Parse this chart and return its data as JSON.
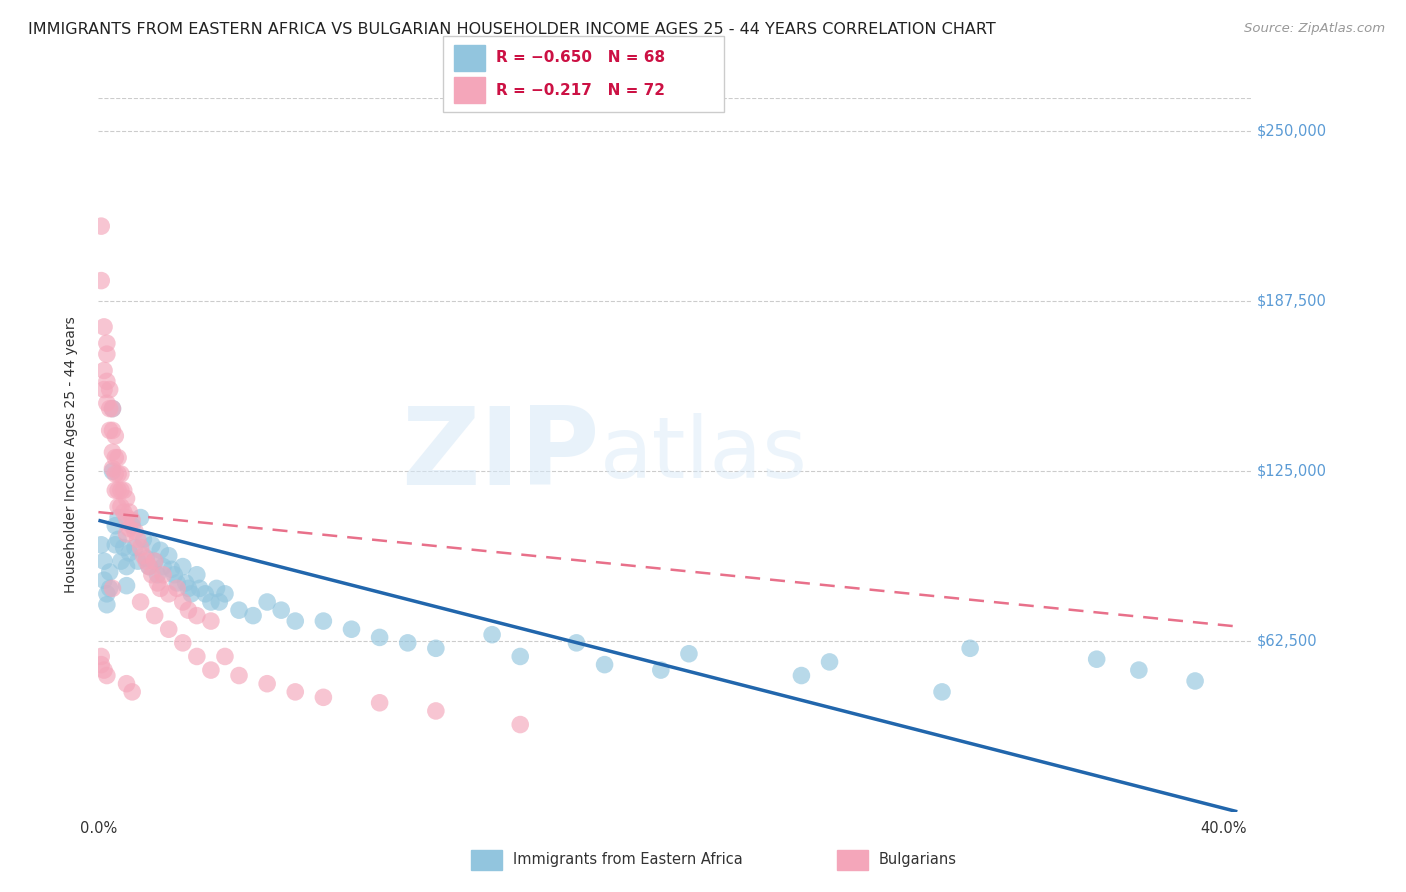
{
  "title": "IMMIGRANTS FROM EASTERN AFRICA VS BULGARIAN HOUSEHOLDER INCOME AGES 25 - 44 YEARS CORRELATION CHART",
  "source": "Source: ZipAtlas.com",
  "ylabel": "Householder Income Ages 25 - 44 years",
  "ytick_labels": [
    "$250,000",
    "$187,500",
    "$125,000",
    "$62,500"
  ],
  "ytick_values": [
    250000,
    187500,
    125000,
    62500
  ],
  "ymax": 262000,
  "ymin": 0,
  "xmin": 0.0,
  "xmax": 0.41,
  "legend_label_blue": "Immigrants from Eastern Africa",
  "legend_label_pink": "Bulgarians",
  "watermark_zip": "ZIP",
  "watermark_atlas": "atlas",
  "blue_color": "#92c5de",
  "pink_color": "#f4a6ba",
  "blue_line_color": "#2166ac",
  "pink_line_color": "#e8708a",
  "blue_scatter": [
    [
      0.001,
      98000
    ],
    [
      0.002,
      92000
    ],
    [
      0.002,
      85000
    ],
    [
      0.003,
      80000
    ],
    [
      0.003,
      76000
    ],
    [
      0.004,
      88000
    ],
    [
      0.004,
      82000
    ],
    [
      0.005,
      148000
    ],
    [
      0.005,
      125000
    ],
    [
      0.006,
      105000
    ],
    [
      0.006,
      98000
    ],
    [
      0.007,
      108000
    ],
    [
      0.007,
      100000
    ],
    [
      0.008,
      92000
    ],
    [
      0.009,
      97000
    ],
    [
      0.01,
      90000
    ],
    [
      0.01,
      83000
    ],
    [
      0.011,
      95000
    ],
    [
      0.012,
      105000
    ],
    [
      0.013,
      97000
    ],
    [
      0.014,
      92000
    ],
    [
      0.015,
      108000
    ],
    [
      0.016,
      100000
    ],
    [
      0.017,
      93000
    ],
    [
      0.018,
      90000
    ],
    [
      0.019,
      98000
    ],
    [
      0.02,
      92000
    ],
    [
      0.021,
      87000
    ],
    [
      0.022,
      96000
    ],
    [
      0.023,
      90000
    ],
    [
      0.025,
      94000
    ],
    [
      0.026,
      89000
    ],
    [
      0.027,
      87000
    ],
    [
      0.028,
      84000
    ],
    [
      0.03,
      90000
    ],
    [
      0.031,
      84000
    ],
    [
      0.032,
      82000
    ],
    [
      0.033,
      80000
    ],
    [
      0.035,
      87000
    ],
    [
      0.036,
      82000
    ],
    [
      0.038,
      80000
    ],
    [
      0.04,
      77000
    ],
    [
      0.042,
      82000
    ],
    [
      0.043,
      77000
    ],
    [
      0.045,
      80000
    ],
    [
      0.05,
      74000
    ],
    [
      0.055,
      72000
    ],
    [
      0.06,
      77000
    ],
    [
      0.065,
      74000
    ],
    [
      0.07,
      70000
    ],
    [
      0.08,
      70000
    ],
    [
      0.09,
      67000
    ],
    [
      0.1,
      64000
    ],
    [
      0.11,
      62000
    ],
    [
      0.12,
      60000
    ],
    [
      0.15,
      57000
    ],
    [
      0.18,
      54000
    ],
    [
      0.2,
      52000
    ],
    [
      0.25,
      50000
    ],
    [
      0.3,
      44000
    ],
    [
      0.355,
      56000
    ],
    [
      0.37,
      52000
    ],
    [
      0.39,
      48000
    ],
    [
      0.31,
      60000
    ],
    [
      0.26,
      55000
    ],
    [
      0.21,
      58000
    ],
    [
      0.17,
      62000
    ],
    [
      0.14,
      65000
    ]
  ],
  "pink_scatter": [
    [
      0.001,
      215000
    ],
    [
      0.001,
      195000
    ],
    [
      0.002,
      178000
    ],
    [
      0.002,
      162000
    ],
    [
      0.002,
      155000
    ],
    [
      0.003,
      172000
    ],
    [
      0.003,
      168000
    ],
    [
      0.003,
      158000
    ],
    [
      0.003,
      150000
    ],
    [
      0.004,
      155000
    ],
    [
      0.004,
      148000
    ],
    [
      0.004,
      140000
    ],
    [
      0.005,
      148000
    ],
    [
      0.005,
      140000
    ],
    [
      0.005,
      132000
    ],
    [
      0.005,
      126000
    ],
    [
      0.006,
      138000
    ],
    [
      0.006,
      130000
    ],
    [
      0.006,
      124000
    ],
    [
      0.006,
      118000
    ],
    [
      0.007,
      130000
    ],
    [
      0.007,
      124000
    ],
    [
      0.007,
      118000
    ],
    [
      0.007,
      112000
    ],
    [
      0.008,
      124000
    ],
    [
      0.008,
      118000
    ],
    [
      0.008,
      112000
    ],
    [
      0.009,
      118000
    ],
    [
      0.009,
      110000
    ],
    [
      0.01,
      115000
    ],
    [
      0.01,
      108000
    ],
    [
      0.01,
      102000
    ],
    [
      0.011,
      110000
    ],
    [
      0.011,
      104000
    ],
    [
      0.012,
      107000
    ],
    [
      0.013,
      103000
    ],
    [
      0.014,
      100000
    ],
    [
      0.015,
      97000
    ],
    [
      0.016,
      94000
    ],
    [
      0.017,
      92000
    ],
    [
      0.018,
      90000
    ],
    [
      0.019,
      87000
    ],
    [
      0.02,
      92000
    ],
    [
      0.021,
      84000
    ],
    [
      0.022,
      82000
    ],
    [
      0.023,
      87000
    ],
    [
      0.025,
      80000
    ],
    [
      0.028,
      82000
    ],
    [
      0.03,
      77000
    ],
    [
      0.032,
      74000
    ],
    [
      0.035,
      72000
    ],
    [
      0.04,
      70000
    ],
    [
      0.001,
      57000
    ],
    [
      0.001,
      54000
    ],
    [
      0.002,
      52000
    ],
    [
      0.003,
      50000
    ],
    [
      0.005,
      82000
    ],
    [
      0.01,
      47000
    ],
    [
      0.012,
      44000
    ],
    [
      0.015,
      77000
    ],
    [
      0.02,
      72000
    ],
    [
      0.025,
      67000
    ],
    [
      0.03,
      62000
    ],
    [
      0.035,
      57000
    ],
    [
      0.04,
      52000
    ],
    [
      0.045,
      57000
    ],
    [
      0.05,
      50000
    ],
    [
      0.06,
      47000
    ],
    [
      0.07,
      44000
    ],
    [
      0.08,
      42000
    ],
    [
      0.1,
      40000
    ],
    [
      0.12,
      37000
    ],
    [
      0.15,
      32000
    ]
  ],
  "blue_line_x": [
    0.0,
    0.405
  ],
  "blue_line_y": [
    107000,
    0
  ],
  "pink_line_x": [
    0.0,
    0.405
  ],
  "pink_line_y": [
    110000,
    68000
  ],
  "title_fontsize": 11.5,
  "axis_label_fontsize": 10,
  "tick_fontsize": 10.5,
  "source_fontsize": 9.5
}
